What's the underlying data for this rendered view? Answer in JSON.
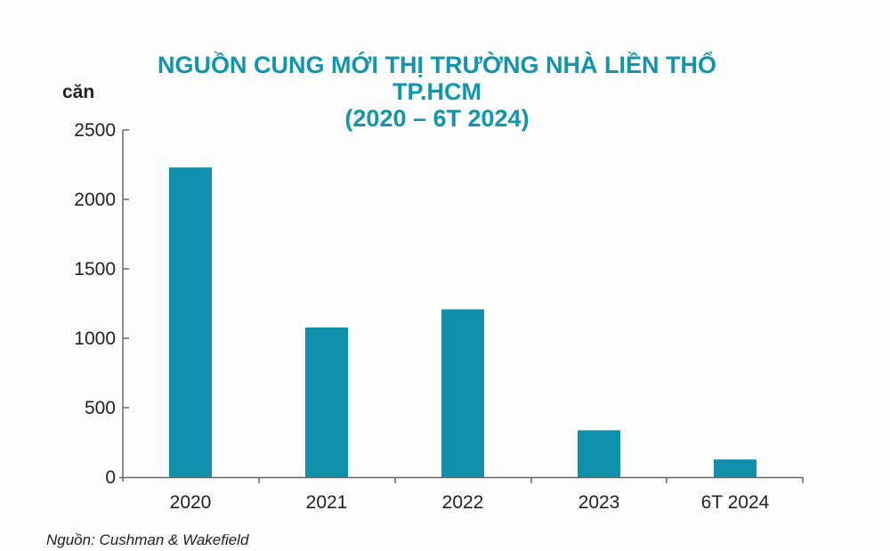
{
  "title": {
    "line1": "NGUỒN CUNG MỚI THỊ TRƯỜNG NHÀ LIỀN THỔ",
    "line2": "TP.HCM",
    "line3": "(2020 – 6T 2024)"
  },
  "y_unit": "căn",
  "y_ticks": [
    "2500",
    "2000",
    "1500",
    "1000",
    "500",
    "0"
  ],
  "x_labels": [
    "2020",
    "2021",
    "2022",
    "2023",
    "6T 2024"
  ],
  "source": "Nguồn: Cushman & Wakefield",
  "colors": {
    "bar": "#0f90ab",
    "title": "#0f96ad",
    "axis": "#666666"
  },
  "chart_data": {
    "type": "bar",
    "title": "NGUỒN CUNG MỚI THỊ TRƯỜNG NHÀ LIỀN THỔ TP.HCM (2020 – 6T 2024)",
    "categories": [
      "2020",
      "2021",
      "2022",
      "2023",
      "6T 2024"
    ],
    "values": [
      2230,
      1080,
      1210,
      340,
      130
    ],
    "xlabel": "",
    "ylabel": "căn",
    "ylim": [
      0,
      2500
    ],
    "yticks": [
      0,
      500,
      1000,
      1500,
      2000,
      2500
    ],
    "grid": false,
    "legend": null,
    "source": "Nguồn: Cushman & Wakefield"
  }
}
